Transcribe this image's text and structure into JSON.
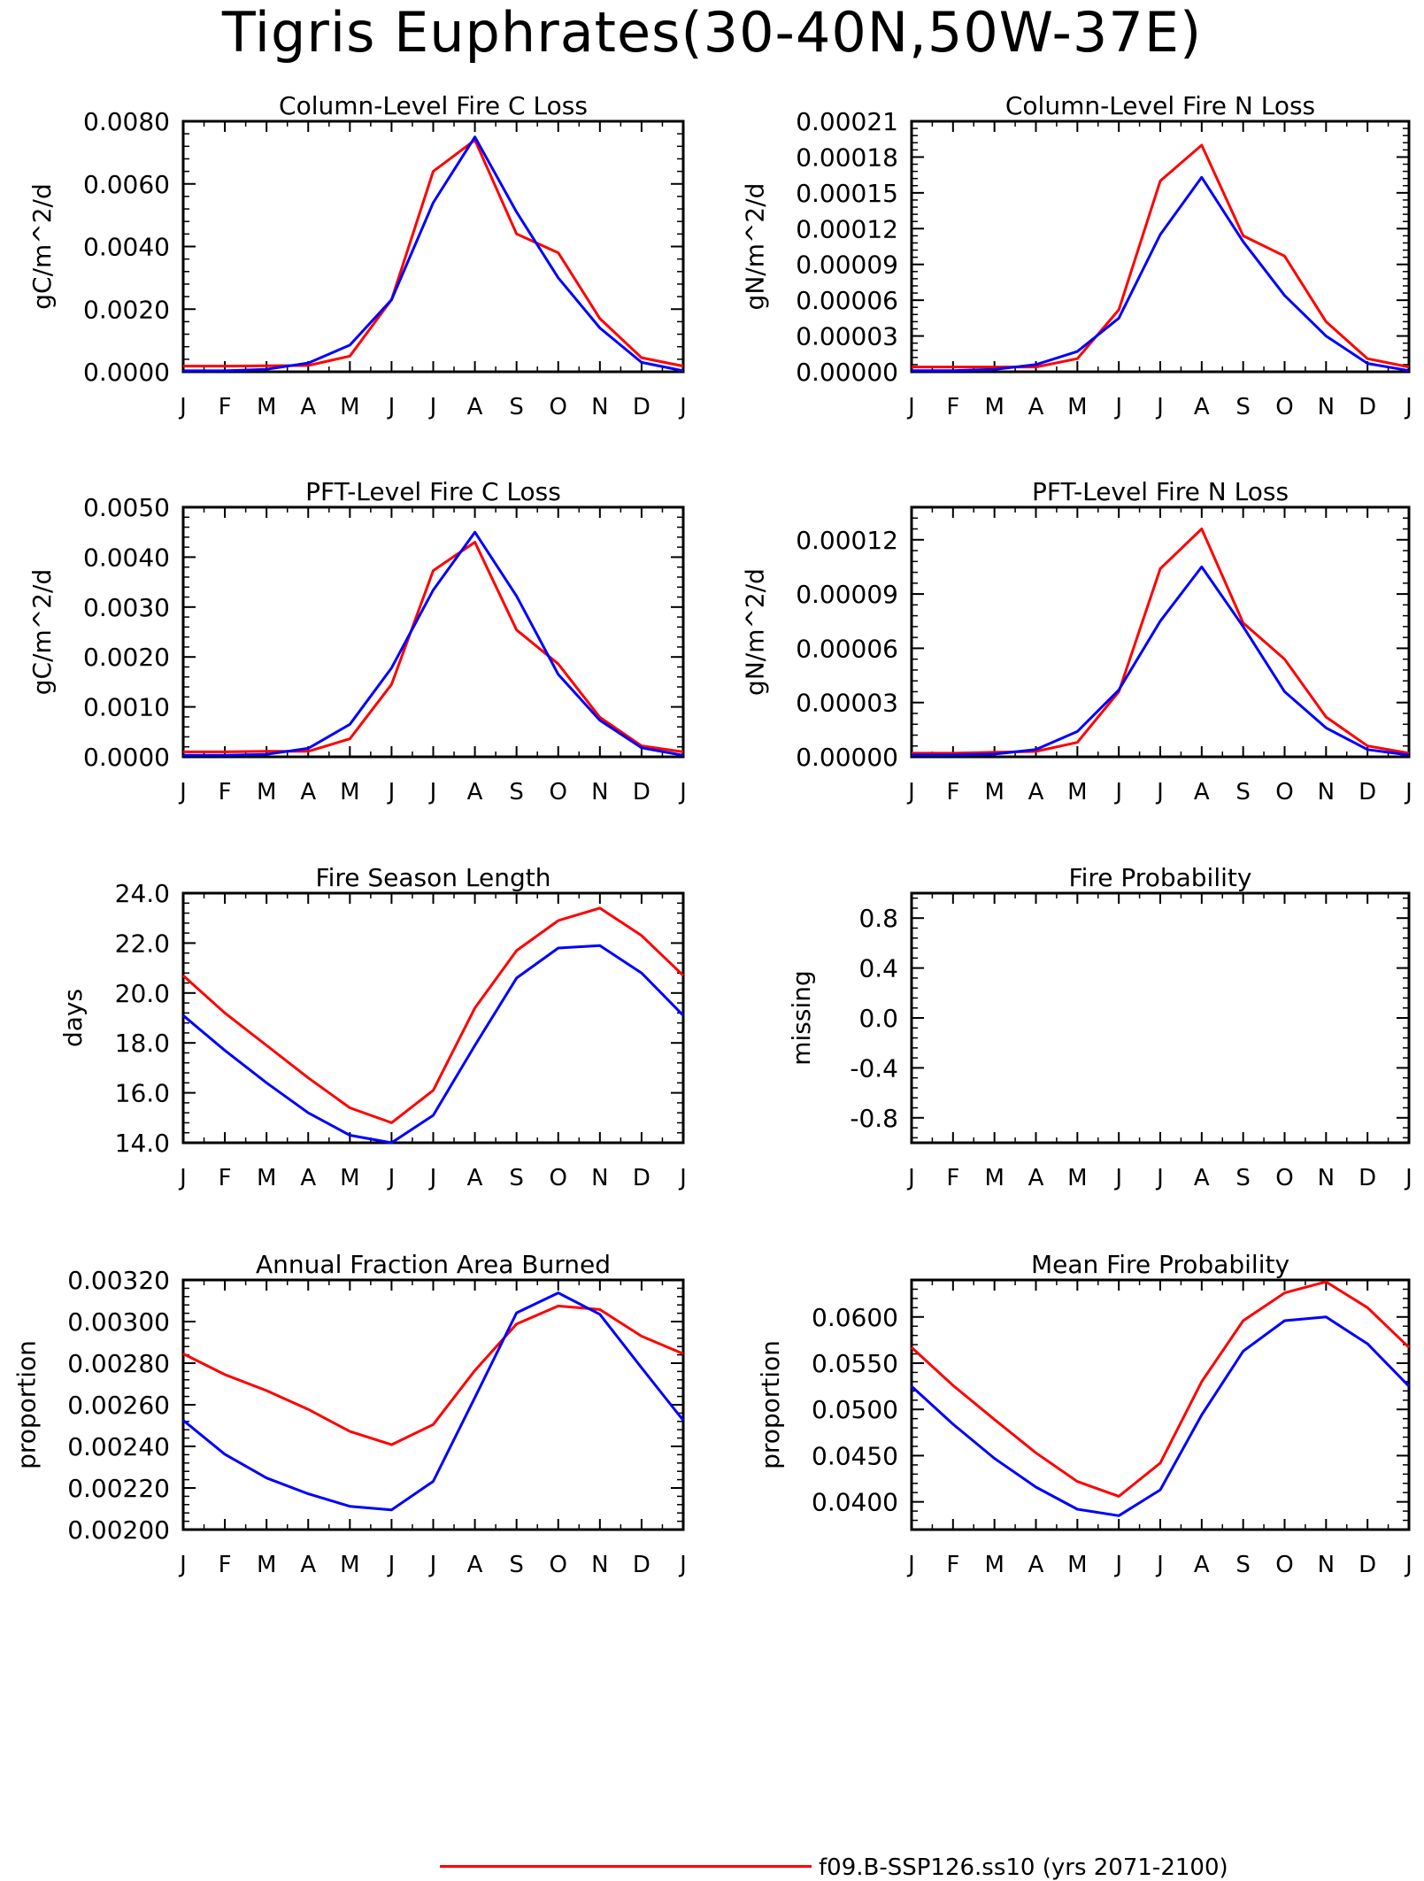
{
  "title": "Tigris Euphrates(30-40N,50W-37E)",
  "colors": {
    "series_a": "#ff0000",
    "series_b": "#0000ff"
  },
  "legend": {
    "label": "f09.B-SSP126.ss10 (yrs 2071-2100)"
  },
  "chart_data": [
    {
      "type": "line",
      "title": "Column-Level Fire C Loss",
      "ylabel": "gC/m^2/d",
      "x": [
        "J",
        "F",
        "M",
        "A",
        "M",
        "J",
        "J",
        "A",
        "S",
        "O",
        "N",
        "D",
        "J"
      ],
      "ylim": [
        0,
        0.008
      ],
      "yticks": [
        "0.0000",
        "0.0020",
        "0.0040",
        "0.0060",
        "0.0080"
      ],
      "series": [
        {
          "color": "#ff0000",
          "values": [
            0.00018,
            0.00018,
            0.00019,
            0.0002,
            0.0005,
            0.0023,
            0.0064,
            0.0074,
            0.0044,
            0.0038,
            0.0017,
            0.00045,
            0.00018
          ]
        },
        {
          "color": "#0000ff",
          "values": [
            3e-05,
            3e-05,
            8e-05,
            0.00028,
            0.00085,
            0.0023,
            0.0054,
            0.0075,
            0.0051,
            0.003,
            0.0014,
            0.0003,
            3e-05
          ]
        }
      ]
    },
    {
      "type": "line",
      "title": "Column-Level Fire N Loss",
      "ylabel": "gN/m^2/d",
      "x": [
        "J",
        "F",
        "M",
        "A",
        "M",
        "J",
        "J",
        "A",
        "S",
        "O",
        "N",
        "D",
        "J"
      ],
      "ylim": [
        0,
        0.00021
      ],
      "yticks": [
        "0.00000",
        "0.00003",
        "0.00006",
        "0.00009",
        "0.00012",
        "0.00015",
        "0.00018",
        "0.00021"
      ],
      "series": [
        {
          "color": "#ff0000",
          "values": [
            4e-06,
            4e-06,
            4e-06,
            4e-06,
            1.1e-05,
            5.2e-05,
            0.00016,
            0.00019,
            0.000114,
            9.7e-05,
            4.2e-05,
            1.1e-05,
            4e-06
          ]
        },
        {
          "color": "#0000ff",
          "values": [
            1e-06,
            1e-06,
            2e-06,
            6e-06,
            1.7e-05,
            4.5e-05,
            0.000115,
            0.000163,
            0.000109,
            6.4e-05,
            3e-05,
            7e-06,
            1e-06
          ]
        }
      ]
    },
    {
      "type": "line",
      "title": "PFT-Level Fire C Loss",
      "ylabel": "gC/m^2/d",
      "x": [
        "J",
        "F",
        "M",
        "A",
        "M",
        "J",
        "J",
        "A",
        "S",
        "O",
        "N",
        "D",
        "J"
      ],
      "ylim": [
        0,
        0.005
      ],
      "yticks": [
        "0.0000",
        "0.0010",
        "0.0020",
        "0.0030",
        "0.0040",
        "0.0050"
      ],
      "series": [
        {
          "color": "#ff0000",
          "values": [
            0.0001,
            0.0001,
            0.00011,
            0.00011,
            0.00036,
            0.00145,
            0.00373,
            0.0043,
            0.00254,
            0.00186,
            0.00079,
            0.00022,
            0.0001
          ]
        },
        {
          "color": "#0000ff",
          "values": [
            3e-05,
            3e-05,
            5e-05,
            0.00017,
            0.00065,
            0.00178,
            0.00334,
            0.0045,
            0.00322,
            0.00165,
            0.00073,
            0.00018,
            3e-05
          ]
        }
      ]
    },
    {
      "type": "line",
      "title": "PFT-Level Fire N Loss",
      "ylabel": "gN/m^2/d",
      "x": [
        "J",
        "F",
        "M",
        "A",
        "M",
        "J",
        "J",
        "A",
        "S",
        "O",
        "N",
        "D",
        "J"
      ],
      "ylim": [
        0,
        0.000138
      ],
      "yticks": [
        "0.00000",
        "0.00003",
        "0.00006",
        "0.00009",
        "0.00012"
      ],
      "series": [
        {
          "color": "#ff0000",
          "values": [
            2e-06,
            2e-06,
            2.5e-06,
            3e-06,
            8e-06,
            3.6e-05,
            0.000104,
            0.000126,
            7.4e-05,
            5.4e-05,
            2.2e-05,
            6e-06,
            2e-06
          ]
        },
        {
          "color": "#0000ff",
          "values": [
            1e-06,
            1e-06,
            1.5e-06,
            4e-06,
            1.4e-05,
            3.7e-05,
            7.5e-05,
            0.000105,
            7.2e-05,
            3.6e-05,
            1.6e-05,
            4e-06,
            1e-06
          ]
        }
      ]
    },
    {
      "type": "line",
      "title": "Fire Season Length",
      "ylabel": "days",
      "x": [
        "J",
        "F",
        "M",
        "A",
        "M",
        "J",
        "J",
        "A",
        "S",
        "O",
        "N",
        "D",
        "J"
      ],
      "ylim": [
        14,
        24
      ],
      "yticks": [
        "14.0",
        "16.0",
        "18.0",
        "20.0",
        "22.0",
        "24.0"
      ],
      "series": [
        {
          "color": "#ff0000",
          "values": [
            20.7,
            19.2,
            17.9,
            16.6,
            15.4,
            14.8,
            16.1,
            19.4,
            21.7,
            22.9,
            23.4,
            22.3,
            20.7
          ]
        },
        {
          "color": "#0000ff",
          "values": [
            19.1,
            17.7,
            16.4,
            15.2,
            14.3,
            14.0,
            15.1,
            17.9,
            20.6,
            21.8,
            21.9,
            20.8,
            19.1
          ]
        }
      ]
    },
    {
      "type": "line",
      "title": "Fire Probability",
      "ylabel": "missing",
      "x": [
        "J",
        "F",
        "M",
        "A",
        "M",
        "J",
        "J",
        "A",
        "S",
        "O",
        "N",
        "D",
        "J"
      ],
      "ylim": [
        -1,
        1
      ],
      "yticks": [
        "-0.8",
        "-0.4",
        "0.0",
        "0.4",
        "0.8"
      ],
      "series": []
    },
    {
      "type": "line",
      "title": "Annual Fraction Area Burned",
      "ylabel": "proportion",
      "x": [
        "J",
        "F",
        "M",
        "A",
        "M",
        "J",
        "J",
        "A",
        "S",
        "O",
        "N",
        "D",
        "J"
      ],
      "ylim": [
        0.002,
        0.0032
      ],
      "yticks": [
        "0.00200",
        "0.00220",
        "0.00240",
        "0.00260",
        "0.00280",
        "0.00300",
        "0.00320"
      ],
      "series": [
        {
          "color": "#ff0000",
          "values": [
            0.002845,
            0.002745,
            0.002668,
            0.002578,
            0.002472,
            0.002408,
            0.002505,
            0.002765,
            0.002988,
            0.003075,
            0.003058,
            0.00293,
            0.002845
          ]
        },
        {
          "color": "#0000ff",
          "values": [
            0.002525,
            0.002362,
            0.002248,
            0.002172,
            0.002112,
            0.002095,
            0.002232,
            0.002635,
            0.003042,
            0.003138,
            0.003035,
            0.002778,
            0.002525
          ]
        }
      ]
    },
    {
      "type": "line",
      "title": "Mean Fire Probability",
      "ylabel": "proportion",
      "x": [
        "J",
        "F",
        "M",
        "A",
        "M",
        "J",
        "J",
        "A",
        "S",
        "O",
        "N",
        "D",
        "J"
      ],
      "ylim": [
        0.037,
        0.064
      ],
      "yticks": [
        "0.0400",
        "0.0450",
        "0.0500",
        "0.0550",
        "0.0600"
      ],
      "series": [
        {
          "color": "#ff0000",
          "values": [
            0.0567,
            0.0526,
            0.0489,
            0.0453,
            0.0422,
            0.0406,
            0.0442,
            0.053,
            0.0596,
            0.0626,
            0.0638,
            0.061,
            0.0567
          ]
        },
        {
          "color": "#0000ff",
          "values": [
            0.0525,
            0.0484,
            0.0447,
            0.0416,
            0.0392,
            0.0385,
            0.0413,
            0.0494,
            0.0563,
            0.0596,
            0.06,
            0.0571,
            0.0525
          ]
        }
      ]
    }
  ]
}
